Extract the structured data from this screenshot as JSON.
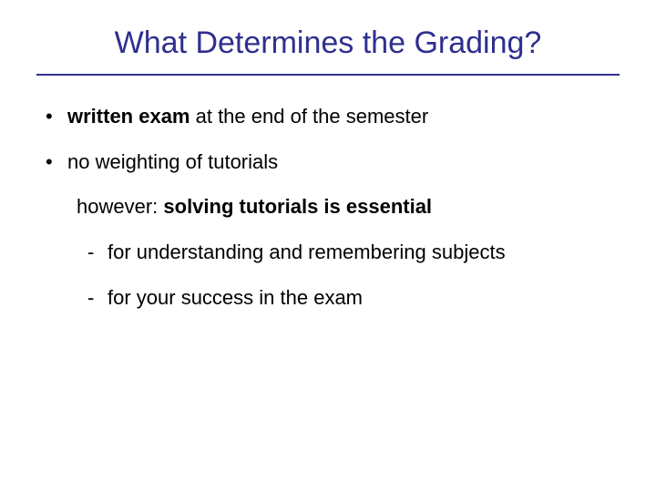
{
  "colors": {
    "title_color": "#2f2f8f",
    "rule_color": "#2f2f8f",
    "text_color": "#000000",
    "background": "#ffffff"
  },
  "title": "What Determines the Grading?",
  "bullets": {
    "b1_bold": "written exam",
    "b1_rest": " at the end of the semester",
    "b2": "no weighting of tutorials"
  },
  "sub": {
    "however_prefix": "however: ",
    "however_bold": "solving tutorials is essential"
  },
  "dashes": {
    "d1": "for understanding and remembering subjects",
    "d2": "for your success in the exam"
  }
}
